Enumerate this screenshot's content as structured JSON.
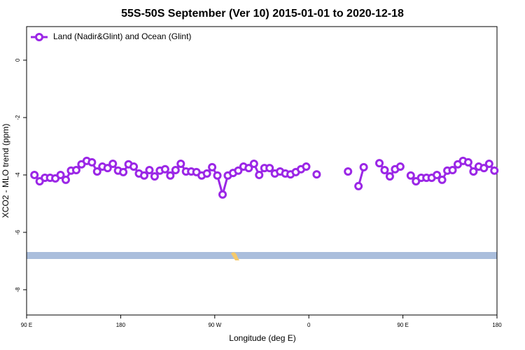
{
  "chart_data": {
    "type": "line",
    "title": "55S-50S September (Ver 10)   2015-01-01 to 2020-12-18",
    "xlabel": "Longitude (deg E)",
    "ylabel": "XCO2 - MLO trend (ppm)",
    "x": [
      97.5,
      102.5,
      107.5,
      112.5,
      117.5,
      122.5,
      127.5,
      132.5,
      137.5,
      142.5,
      147.5,
      152.5,
      157.5,
      162.5,
      167.5,
      172.5,
      177.5,
      182.5,
      187.5,
      192.5,
      197.5,
      202.5,
      207.5,
      212.5,
      217.5,
      222.5,
      227.5,
      232.5,
      237.5,
      242.5,
      247.5,
      252.5,
      257.5,
      262.5,
      267.5,
      272.5,
      277.5,
      282.5,
      287.5,
      292.5,
      297.5,
      302.5,
      307.5,
      312.5,
      317.5,
      322.5,
      327.5,
      332.5,
      337.5,
      342.5,
      347.5,
      352.5,
      357.5,
      362.5,
      367.5,
      372.5,
      377.5,
      382.5,
      387.5,
      392.5,
      397.5,
      402.5,
      407.5,
      412.5,
      417.5,
      422.5,
      427.5,
      432.5,
      437.5,
      442.5,
      447.5,
      452.5,
      457.5,
      462.5,
      467.5,
      472.5,
      477.5,
      482.5,
      487.5,
      492.5,
      497.5,
      502.5,
      507.5,
      512.5,
      517.5,
      522.5,
      527.5,
      532.5,
      537.5
    ],
    "series": [
      {
        "name": "Land (Nadir&Glint) and Ocean (Glint)",
        "color": "#9b27e6",
        "values": [
          -4.0,
          -4.22,
          -4.1,
          -4.1,
          -4.12,
          -4.0,
          -4.17,
          -3.85,
          -3.83,
          -3.63,
          -3.51,
          -3.56,
          -3.88,
          -3.71,
          -3.76,
          -3.61,
          -3.85,
          -3.9,
          -3.63,
          -3.71,
          -3.95,
          -4.02,
          -3.83,
          -4.05,
          -3.85,
          -3.8,
          -4.02,
          -3.83,
          -3.61,
          -3.88,
          -3.88,
          -3.9,
          -4.02,
          -3.95,
          -3.73,
          -4.02,
          -4.68,
          -4.02,
          -3.93,
          -3.85,
          -3.71,
          -3.76,
          -3.61,
          -4.0,
          -3.76,
          -3.76,
          -3.95,
          -3.88,
          -3.95,
          -3.98,
          -3.9,
          -3.8,
          -3.71,
          null,
          -3.98,
          null,
          null,
          null,
          null,
          null,
          -3.88,
          null,
          -4.39,
          -3.73,
          null,
          null,
          -3.59,
          -3.83,
          -4.05,
          -3.8,
          -3.71,
          null,
          -4.02,
          -4.22,
          -4.1,
          -4.1,
          -4.1,
          -4.0,
          -4.17,
          -3.85,
          -3.83,
          -3.63,
          -3.51,
          -3.56,
          -3.88,
          -3.71,
          -3.76,
          -3.61,
          -3.85
        ]
      }
    ],
    "xlim": [
      90,
      540
    ],
    "xticks": [
      {
        "value": 90,
        "label": "90 E"
      },
      180,
      {
        "value": 270,
        "label": "90 W"
      },
      {
        "value": 360,
        "label": "0"
      },
      {
        "value": 450,
        "label": "90 E"
      },
      {
        "value": 540,
        "label": "180"
      }
    ],
    "ylim": [
      -8.88,
      1.17
    ],
    "yticks": [
      0,
      -2,
      -4,
      -6,
      -8
    ],
    "legend": "upper left"
  }
}
